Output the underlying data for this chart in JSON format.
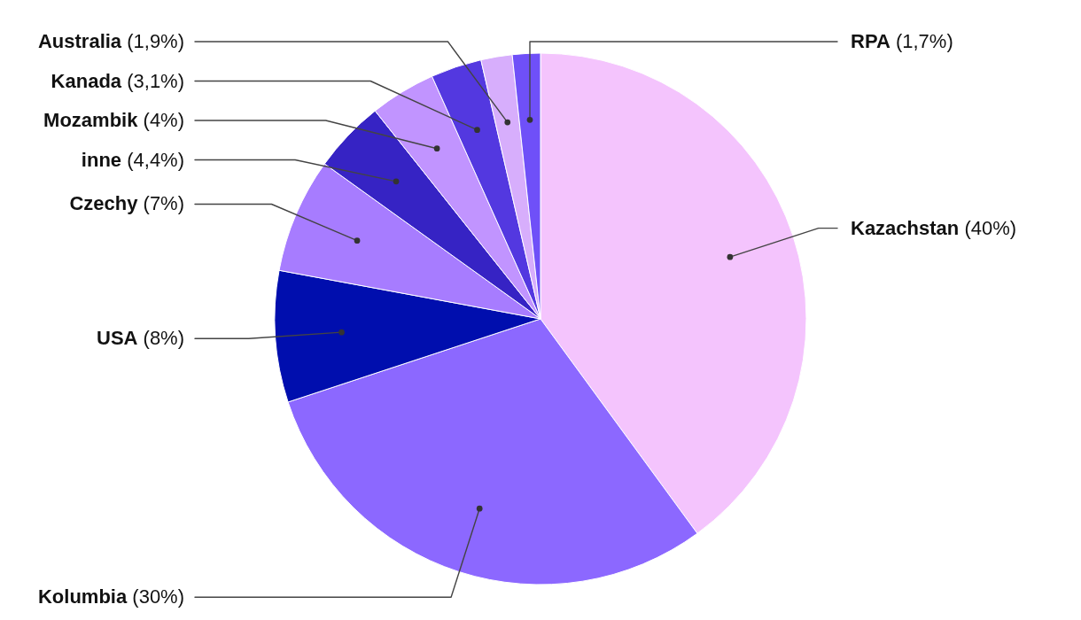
{
  "chart_data": {
    "type": "pie",
    "categories": [
      "Kazachstan",
      "Kolumbia",
      "USA",
      "Czechy",
      "inne",
      "Mozambik",
      "Kanada",
      "Australia",
      "RPA"
    ],
    "values": [
      40,
      30,
      8,
      7,
      4.4,
      4,
      3.1,
      1.9,
      1.7
    ],
    "colors": [
      "#f4c4fd",
      "#8c68ff",
      "#000eae",
      "#a77cff",
      "#3623c4",
      "#c194ff",
      "#5338e0",
      "#d7aefc",
      "#6f50f8"
    ],
    "value_labels": [
      "(40%)",
      "(30%)",
      "(8%)",
      "(7%)",
      "(4,4%)",
      "(4%)",
      "(3,1%)",
      "(1,9%)",
      "(1,7%)"
    ]
  }
}
